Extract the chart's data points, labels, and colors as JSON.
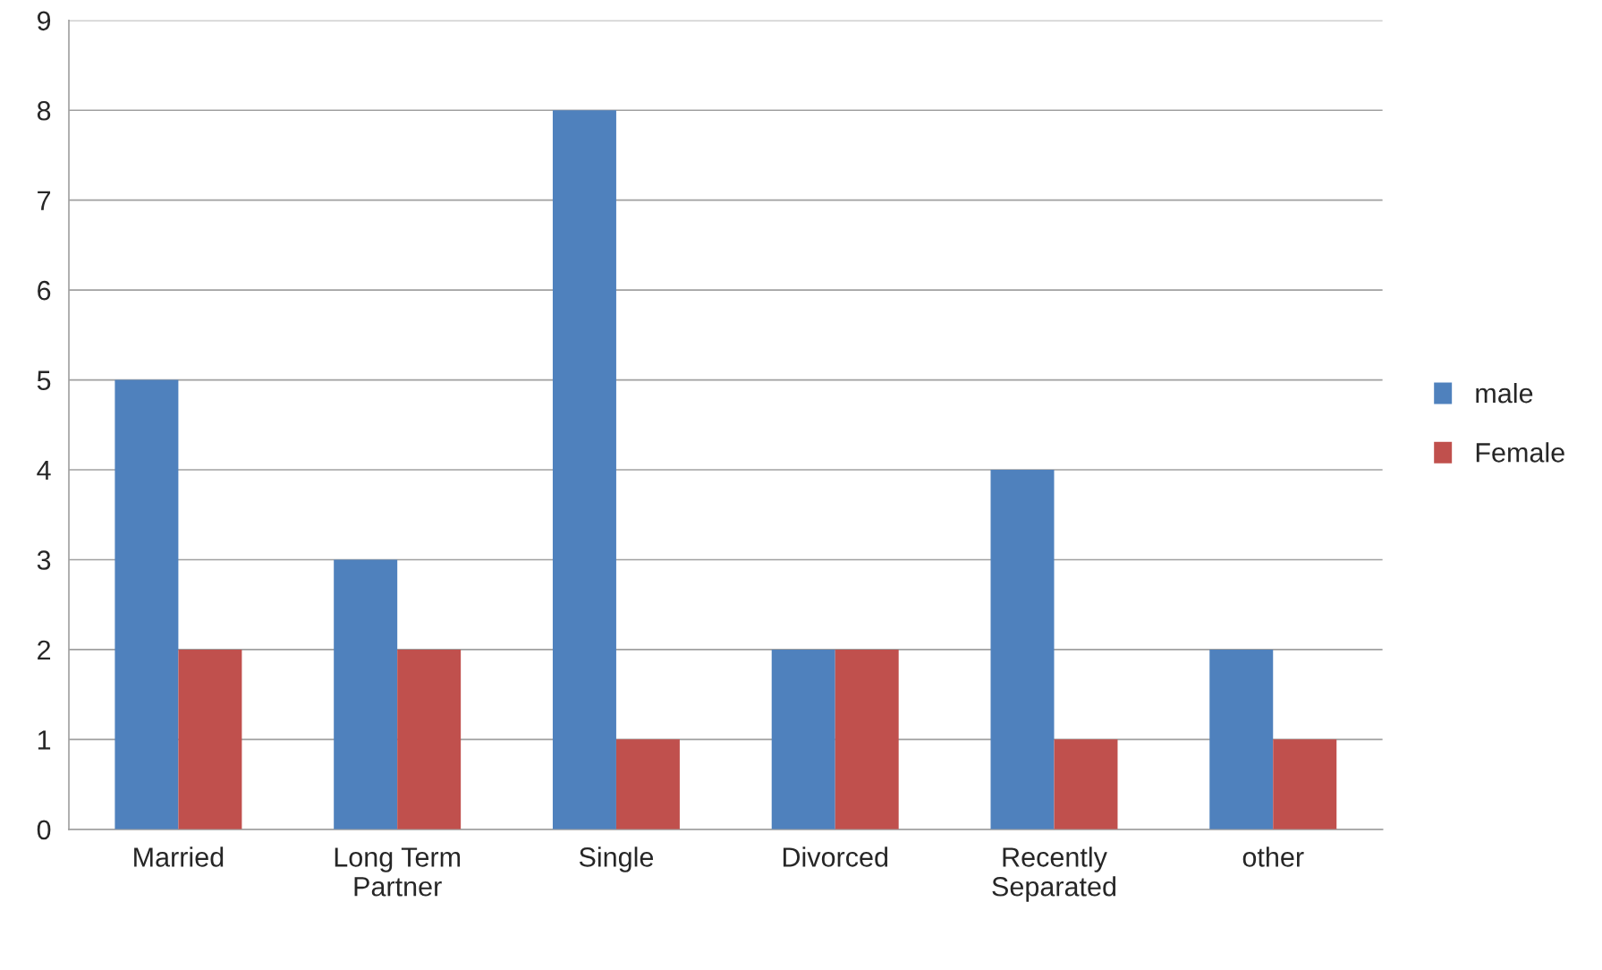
{
  "chart_data": {
    "type": "bar",
    "categories": [
      "Married",
      "Long Term\nPartner",
      "Single",
      "Divorced",
      "Recently\nSeparated",
      "other"
    ],
    "series": [
      {
        "name": "male",
        "color": "#4f81bd",
        "values": [
          5,
          3,
          8,
          2,
          4,
          2
        ]
      },
      {
        "name": "Female",
        "color": "#c0504d",
        "values": [
          2,
          2,
          1,
          2,
          1,
          1
        ]
      }
    ],
    "ylim": [
      0,
      9
    ],
    "yticks": [
      0,
      1,
      2,
      3,
      4,
      5,
      6,
      7,
      8,
      9
    ],
    "grid": "y",
    "legend": "right"
  }
}
